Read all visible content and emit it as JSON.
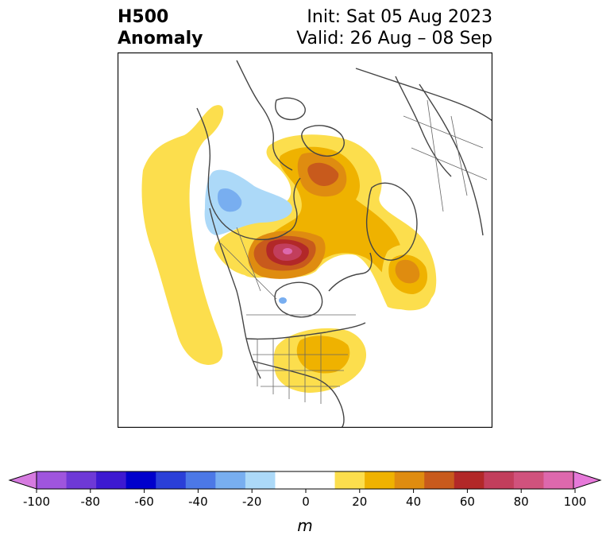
{
  "title": {
    "left_line1": "H500",
    "left_line2": "Anomaly",
    "right_line1": "Init: Sat 05 Aug 2023",
    "right_line2": "Valid: 26 Aug – 08 Sep"
  },
  "colorbar": {
    "unit": "m",
    "ticks": [
      "-100",
      "-80",
      "-60",
      "-40",
      "-20",
      "0",
      "20",
      "40",
      "60",
      "80",
      "100"
    ],
    "colors": [
      "#d67be0",
      "#9f55dd",
      "#6e39d6",
      "#3d19d1",
      "#0000cc",
      "#2a3fd8",
      "#4c78e6",
      "#78aef0",
      "#acd9f8",
      "#ffffff",
      "#ffffff",
      "#fcde4d",
      "#efb200",
      "#df8c10",
      "#c85a1c",
      "#b22828",
      "#c23e5c",
      "#d0527d",
      "#dd68ad",
      "#e679d9"
    ],
    "extend": "both"
  },
  "map": {
    "projection": "north-polar-stereographic",
    "region": "Northern Hemisphere — North America and Arctic"
  }
}
